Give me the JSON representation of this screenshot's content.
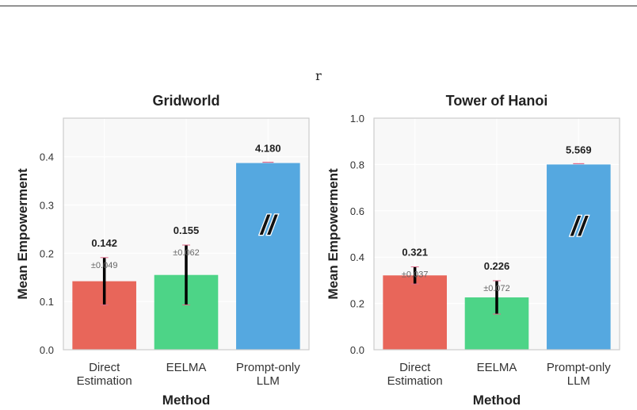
{
  "figure": {
    "suptitle": "r"
  },
  "colors": {
    "direct": "#e8665a",
    "eelma": "#4dd487",
    "prompt": "#55a8e0",
    "plot_bg": "#f8f8f8",
    "frame": "#cccccc"
  },
  "chart_data": [
    {
      "type": "bar",
      "title": "Gridworld",
      "xlabel": "Method",
      "ylabel": "Mean Empowerment",
      "ylim": [
        0,
        0.48
      ],
      "yticks": [
        "0.0",
        "0.1",
        "0.2",
        "0.3",
        "0.4"
      ],
      "categories": [
        [
          "Direct",
          "Estimation"
        ],
        [
          "EELMA"
        ],
        [
          "Prompt-only",
          "LLM"
        ]
      ],
      "values": [
        0.142,
        0.155,
        4.18
      ],
      "displayed_bar_heights": [
        0.142,
        0.155,
        0.387
      ],
      "errors": [
        0.049,
        0.062,
        null
      ],
      "value_labels": [
        "0.142",
        "0.155",
        "4.180"
      ],
      "error_labels": [
        "±0.049",
        "±0.062",
        ""
      ],
      "axis_break_marker": "//",
      "broken_bar_index": 2,
      "grid": true
    },
    {
      "type": "bar",
      "title": "Tower of Hanoi",
      "xlabel": "Method",
      "ylabel": "Mean Empowerment",
      "ylim": [
        0,
        1.0
      ],
      "yticks": [
        "0.0",
        "0.2",
        "0.4",
        "0.6",
        "0.8",
        "1.0"
      ],
      "categories": [
        [
          "Direct",
          "Estimation"
        ],
        [
          "EELMA"
        ],
        [
          "Prompt-only",
          "LLM"
        ]
      ],
      "values": [
        0.321,
        0.226,
        5.569
      ],
      "displayed_bar_heights": [
        0.321,
        0.226,
        0.8
      ],
      "errors": [
        0.037,
        0.072,
        null
      ],
      "value_labels": [
        "0.321",
        "0.226",
        "5.569"
      ],
      "error_labels": [
        "±0.037",
        "±0.072",
        ""
      ],
      "axis_break_marker": "//",
      "broken_bar_index": 2,
      "grid": true
    }
  ]
}
